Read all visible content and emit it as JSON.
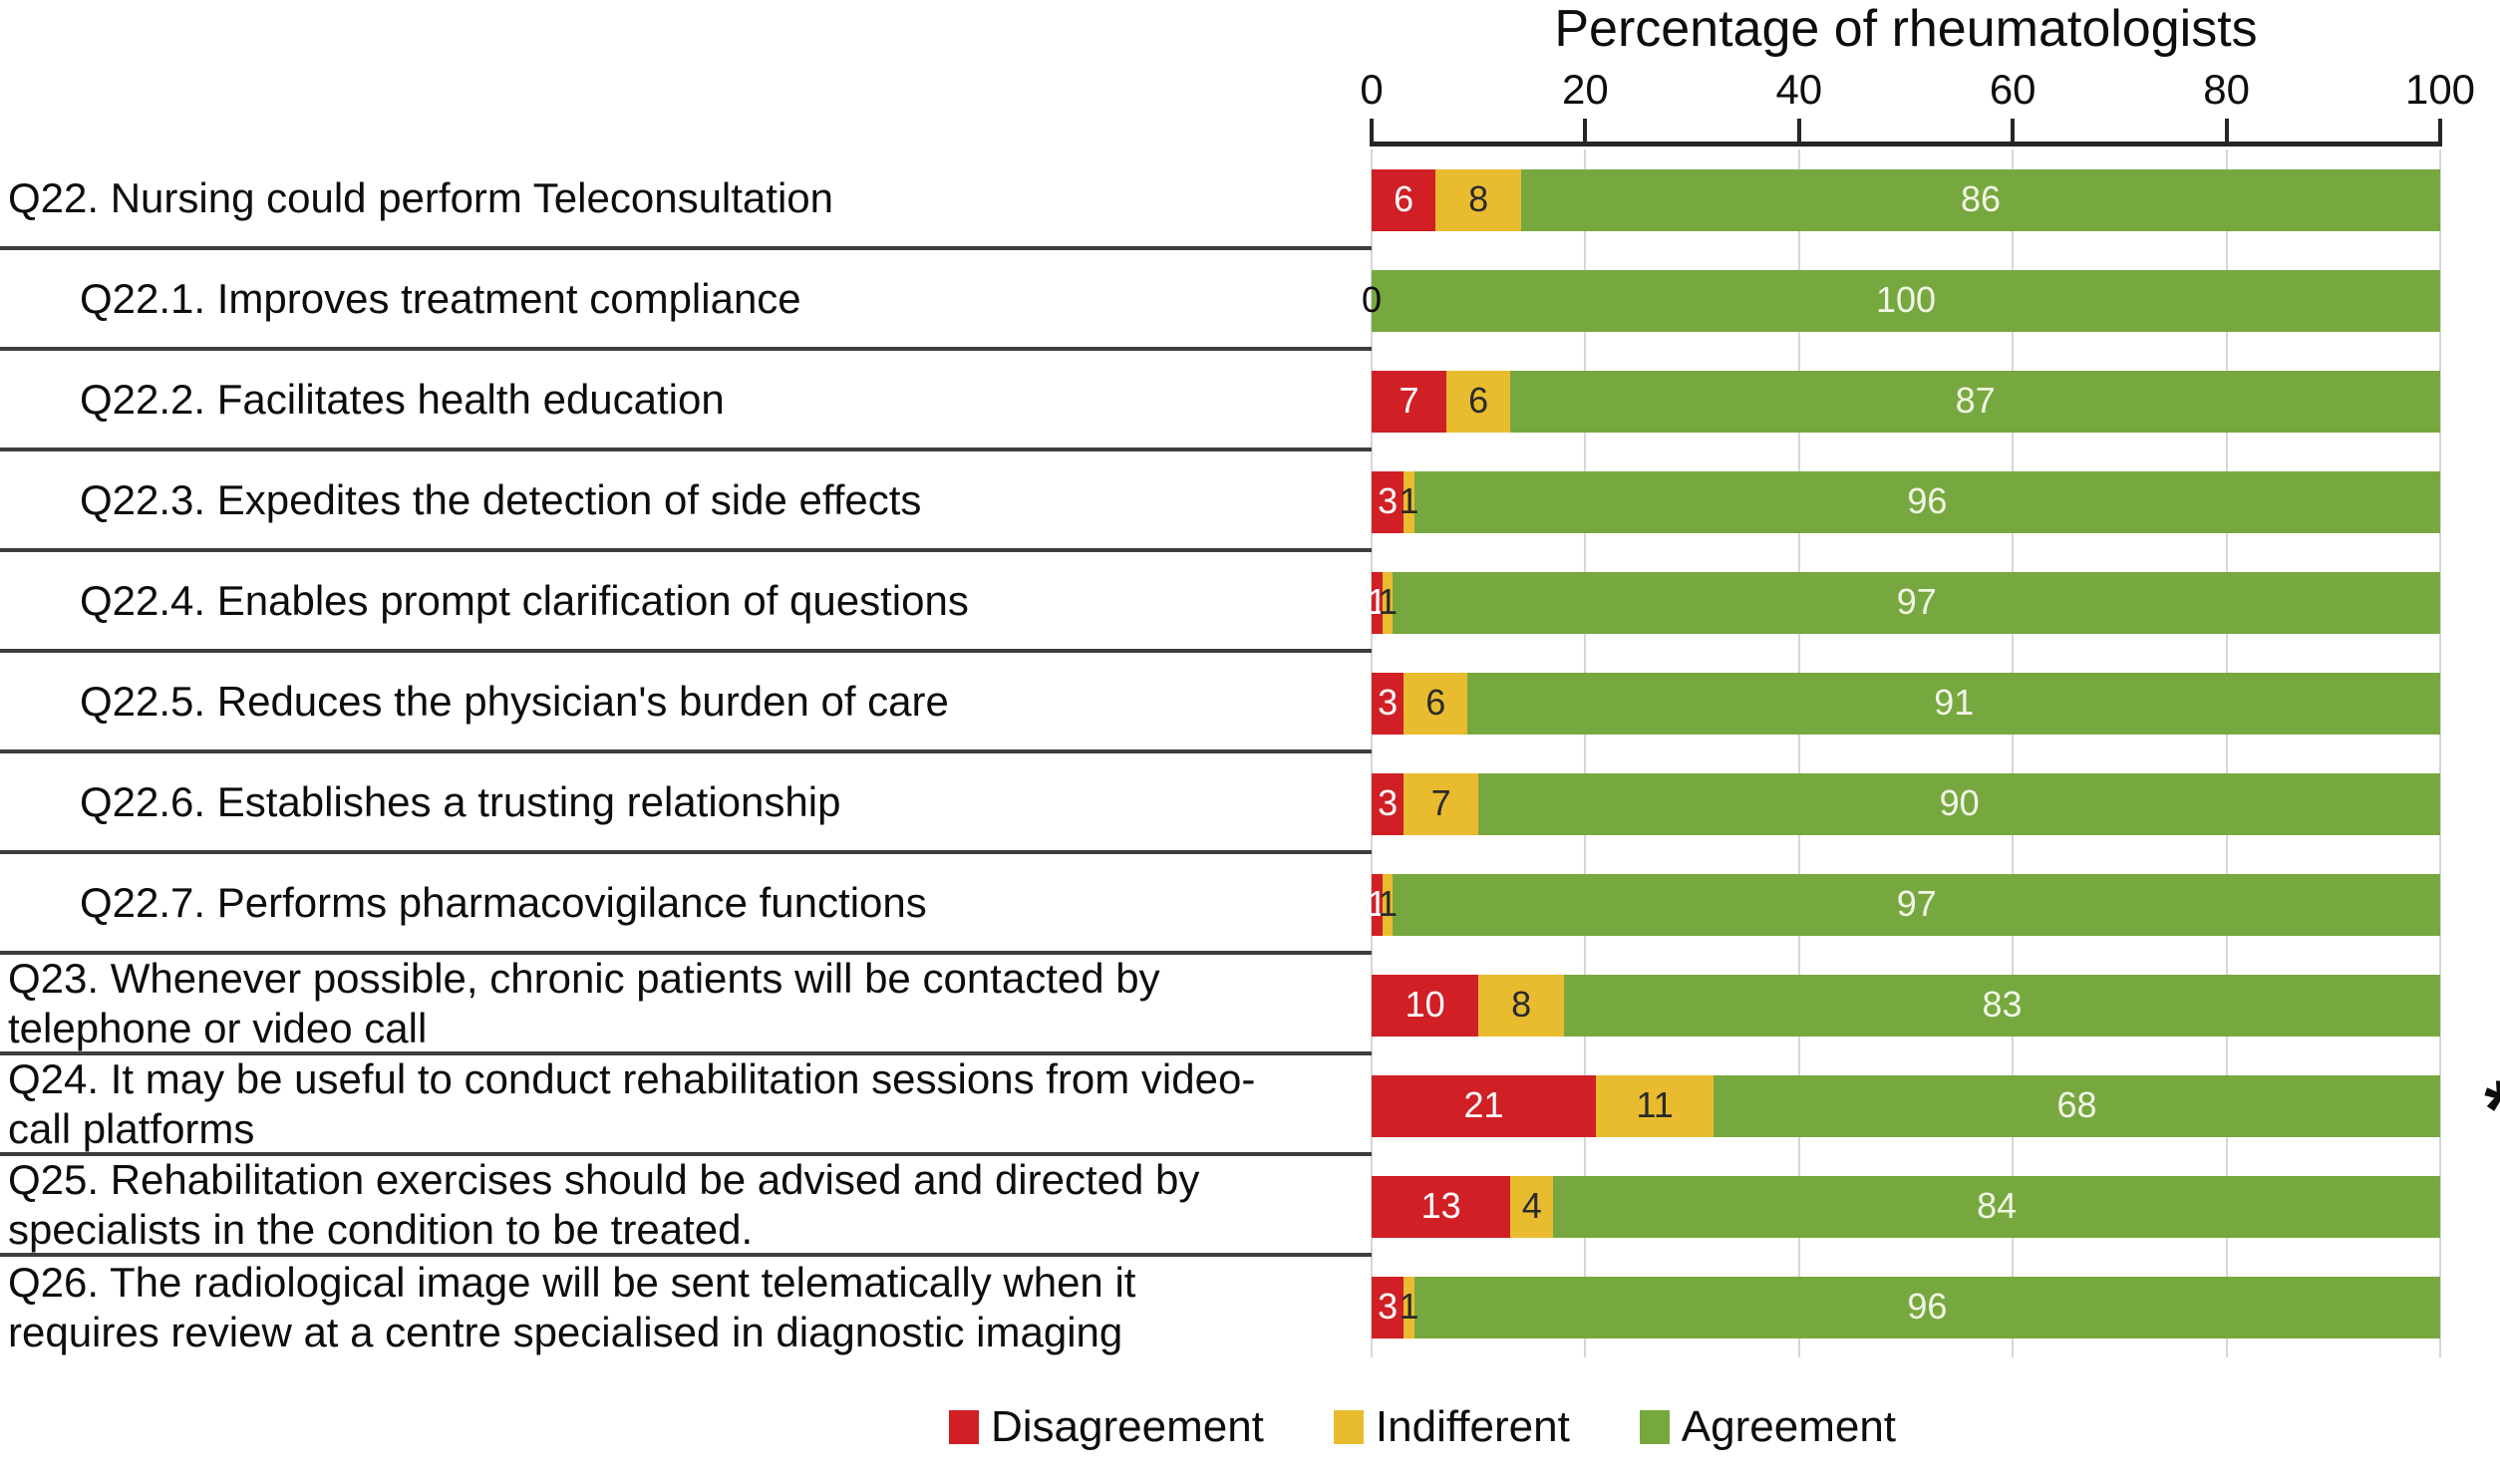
{
  "chart_data": {
    "type": "bar",
    "orientation": "horizontal",
    "stacked": true,
    "title": "Percentage of rheumatologists",
    "x_axis": {
      "position": "top",
      "range": [
        0,
        100
      ],
      "ticks": [
        "0",
        "20",
        "40",
        "60",
        "80",
        "100"
      ],
      "gridlines": true
    },
    "series_names": [
      "Disagreement",
      "Indifferent",
      "Agreement"
    ],
    "legend": {
      "position": "bottom",
      "entries": [
        {
          "label": "Disagreement",
          "color": "#d02026"
        },
        {
          "label": "Indifferent",
          "color": "#e9bc2f"
        },
        {
          "label": "Agreement",
          "color": "#77a840"
        }
      ]
    },
    "annotation": {
      "symbol": "*",
      "row_index": 9
    },
    "rows": [
      {
        "label": "Q22. Nursing could perform Teleconsultation",
        "indent": false,
        "disagreement": 6,
        "indifferent": 8,
        "agreement": 86,
        "star": false
      },
      {
        "label": "Q22.1. Improves treatment compliance",
        "indent": true,
        "disagreement": 0,
        "indifferent": null,
        "agreement": 100,
        "star": false
      },
      {
        "label": "Q22.2. Facilitates health education",
        "indent": true,
        "disagreement": 7,
        "indifferent": 6,
        "agreement": 87,
        "star": false
      },
      {
        "label": "Q22.3. Expedites the detection of side effects",
        "indent": true,
        "disagreement": 3,
        "indifferent": 1,
        "agreement": 96,
        "star": false
      },
      {
        "label": "Q22.4. Enables prompt clarification of questions",
        "indent": true,
        "disagreement": 1,
        "indifferent": 1,
        "agreement": 97,
        "star": false
      },
      {
        "label": "Q22.5. Reduces the physician's burden of care",
        "indent": true,
        "disagreement": 3,
        "indifferent": 6,
        "agreement": 91,
        "star": false
      },
      {
        "label": "Q22.6. Establishes a trusting relationship",
        "indent": true,
        "disagreement": 3,
        "indifferent": 7,
        "agreement": 90,
        "star": false
      },
      {
        "label": "Q22.7. Performs pharmacovigilance functions",
        "indent": true,
        "disagreement": 1,
        "indifferent": 1,
        "agreement": 97,
        "star": false
      },
      {
        "label": "Q23. Whenever possible, chronic patients will be contacted by telephone or video call",
        "indent": false,
        "disagreement": 10,
        "indifferent": 8,
        "agreement": 83,
        "star": false
      },
      {
        "label": "Q24. It may be useful to conduct rehabilitation sessions from video-call platforms",
        "indent": false,
        "disagreement": 21,
        "indifferent": 11,
        "agreement": 68,
        "star": true
      },
      {
        "label": "Q25. Rehabilitation exercises should be advised and directed by specialists in the condition to be treated.",
        "indent": false,
        "disagreement": 13,
        "indifferent": 4,
        "agreement": 84,
        "star": false
      },
      {
        "label": "Q26. The radiological image will be sent telematically when it requires review at a centre specialised in diagnostic imaging",
        "indent": false,
        "disagreement": 3,
        "indifferent": 1,
        "agreement": 96,
        "star": false
      }
    ]
  },
  "colors": {
    "disagreement": "#d02026",
    "indifferent": "#e9bc2f",
    "agreement": "#77a840",
    "gridline": "#d6d6d6",
    "axis_line": "#262626",
    "separator": "#3e3e3e",
    "bar_label_on_red": "#ffffff",
    "bar_label_on_yellow": "#2a2a2a",
    "bar_label_on_green": "#f1f6e6",
    "text": "#111111"
  }
}
